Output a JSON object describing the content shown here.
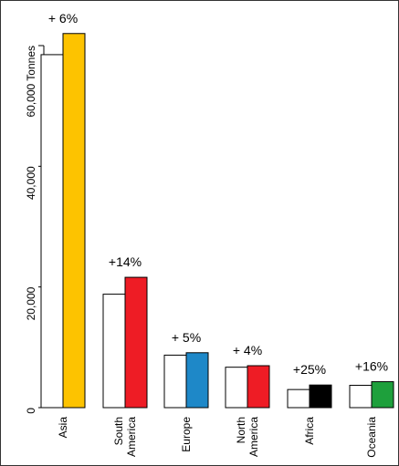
{
  "chart_data": {
    "type": "bar",
    "title": "",
    "xlabel": "",
    "ylabel": "",
    "ylim": [
      0,
      62000
    ],
    "yticks": [
      0,
      20000,
      40000,
      60000
    ],
    "ytick_labels": [
      "0",
      "20,000",
      "40,000",
      "60,000 Tonnes"
    ],
    "grid": false,
    "legend": "none",
    "categories": [
      "Asia",
      "South America",
      "Europe",
      "North America",
      "Africa",
      "Oceania"
    ],
    "category_lines": [
      [
        "Asia"
      ],
      [
        "South",
        "America"
      ],
      [
        "Europe"
      ],
      [
        "North",
        "America"
      ],
      [
        "Africa"
      ],
      [
        "Oceania"
      ]
    ],
    "series": [
      {
        "values": [
          58500,
          18800,
          8700,
          6700,
          3000,
          3700
        ],
        "color": "#ffffff"
      },
      {
        "values": [
          62000,
          21600,
          9100,
          6950,
          3750,
          4300
        ],
        "colors": [
          "#FDC300",
          "#EE1C25",
          "#1E88C8",
          "#EE1C25",
          "#000000",
          "#1EA03C"
        ]
      }
    ],
    "annotations": [
      "+ 6%",
      "+14%",
      "+ 5%",
      "+ 4%",
      "+25%",
      "+16%"
    ]
  }
}
